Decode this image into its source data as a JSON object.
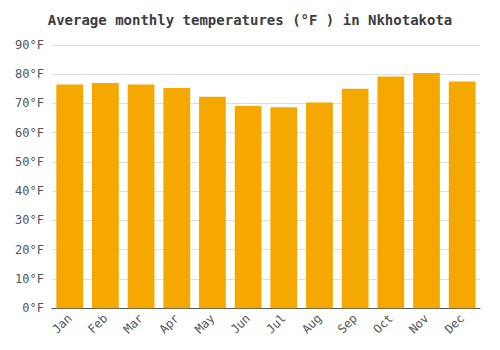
{
  "chart_data": {
    "type": "bar",
    "title": "Average monthly temperatures (°F ) in Nkhotakota",
    "categories": [
      "Jan",
      "Feb",
      "Mar",
      "Apr",
      "May",
      "Jun",
      "Jul",
      "Aug",
      "Sep",
      "Oct",
      "Nov",
      "Dec"
    ],
    "values": [
      76.5,
      77.0,
      76.5,
      75.3,
      72.3,
      69.1,
      68.7,
      70.3,
      75.0,
      79.2,
      80.4,
      77.5
    ],
    "color": "#F5A800",
    "ylim": [
      0,
      90
    ],
    "yticks": [
      {
        "value": 0,
        "label": "0°F"
      },
      {
        "value": 10,
        "label": "10°F"
      },
      {
        "value": 20,
        "label": "20°F"
      },
      {
        "value": 30,
        "label": "30°F"
      },
      {
        "value": 40,
        "label": "40°F"
      },
      {
        "value": 50,
        "label": "50°F"
      },
      {
        "value": 60,
        "label": "60°F"
      },
      {
        "value": 70,
        "label": "70°F"
      },
      {
        "value": 80,
        "label": "80°F"
      },
      {
        "value": 90,
        "label": "90°F"
      }
    ],
    "grid": true
  }
}
